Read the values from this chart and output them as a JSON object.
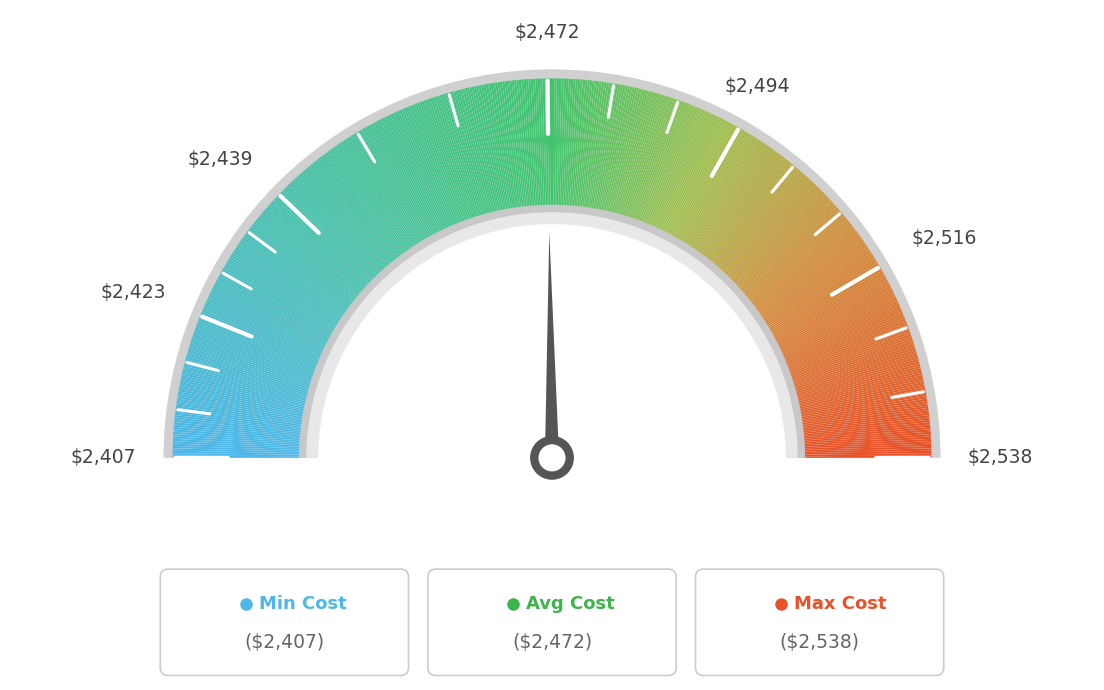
{
  "min_val": 2407,
  "avg_val": 2472,
  "max_val": 2538,
  "tick_labels": [
    "$2,407",
    "$2,423",
    "$2,439",
    "$2,472",
    "$2,494",
    "$2,516",
    "$2,538"
  ],
  "tick_values": [
    2407,
    2423,
    2439,
    2472,
    2494,
    2516,
    2538
  ],
  "legend_labels": [
    "Min Cost",
    "Avg Cost",
    "Max Cost"
  ],
  "legend_values": [
    "($2,407)",
    "($2,472)",
    "($2,538)"
  ],
  "legend_colors": [
    "#4db8e8",
    "#3cb54a",
    "#e8522a"
  ],
  "bg_color": "#ffffff",
  "needle_value": 2472,
  "color_stops": [
    [
      0.0,
      [
        78,
        182,
        232
      ]
    ],
    [
      0.25,
      [
        72,
        192,
        170
      ]
    ],
    [
      0.5,
      [
        68,
        195,
        110
      ]
    ],
    [
      0.65,
      [
        160,
        190,
        80
      ]
    ],
    [
      0.8,
      [
        210,
        140,
        60
      ]
    ],
    [
      1.0,
      [
        230,
        80,
        40
      ]
    ]
  ]
}
